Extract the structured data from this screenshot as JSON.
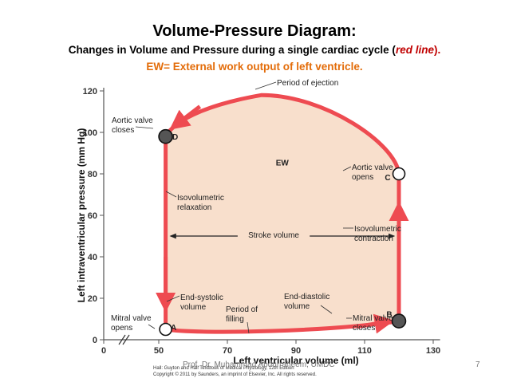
{
  "slide": {
    "title": "Volume-Pressure Diagram:",
    "subtitle_prefix": "Changes in Volume and Pressure during a single cardiac cycle (",
    "subtitle_red": "red line",
    "subtitle_suffix": ").",
    "ew_line": "EW= External work output of left ventricle.",
    "footer": "Prof. Dr. Muhammad Abdurraheem, UMDC",
    "page_number": "7"
  },
  "colors": {
    "loop_stroke": "#ee4b51",
    "loop_fill": "#f8dfcc",
    "valve_point_fill": "#555555",
    "subtitle_red": "#c00000",
    "ew_orange": "#e36c09"
  },
  "chart_data": {
    "type": "line",
    "title": "",
    "xlabel": "Left ventricular volume (ml)",
    "ylabel": "Left intraventricular pressure (mm Hg)",
    "xlim": [
      50,
      130
    ],
    "ylim": [
      0,
      120
    ],
    "x_ticks": [
      "0",
      "50",
      "70",
      "90",
      "110",
      "130"
    ],
    "y_ticks": [
      "0",
      "20",
      "40",
      "60",
      "80",
      "100",
      "120"
    ],
    "x_axis_break": true,
    "grid": false,
    "series": [
      {
        "values": [
          {
            "x": 52,
            "y": 5
          },
          {
            "x": 62,
            "y": 2.5
          },
          {
            "x": 80,
            "y": 2.5
          },
          {
            "x": 100,
            "y": 4
          },
          {
            "x": 120,
            "y": 9
          },
          {
            "x": 120,
            "y": 80
          },
          {
            "x": 119,
            "y": 95
          },
          {
            "x": 112,
            "y": 110
          },
          {
            "x": 98,
            "y": 118
          },
          {
            "x": 80,
            "y": 118
          },
          {
            "x": 66,
            "y": 114
          },
          {
            "x": 55,
            "y": 107
          },
          {
            "x": 52,
            "y": 98
          },
          {
            "x": 52,
            "y": 5
          }
        ]
      }
    ],
    "points": [
      {
        "label": "A",
        "x": 52,
        "y": 5,
        "filled": false
      },
      {
        "label": "B",
        "x": 120,
        "y": 9,
        "filled": true
      },
      {
        "label": "C",
        "x": 120,
        "y": 80,
        "filled": false
      },
      {
        "label": "D",
        "x": 52,
        "y": 98,
        "filled": true
      }
    ],
    "area_label": "EW",
    "annotations": [
      {
        "name": "period-of-ejection",
        "lines": [
          "Period of ejection"
        ]
      },
      {
        "name": "aortic-valve-closes",
        "lines": [
          "Aortic valve",
          "closes"
        ]
      },
      {
        "name": "aortic-valve-opens",
        "lines": [
          "Aortic valve",
          "opens"
        ]
      },
      {
        "name": "isovolumetric-relaxation",
        "lines": [
          "Isovolumetric",
          "relaxation"
        ]
      },
      {
        "name": "isovolumetric-contraction",
        "lines": [
          "Isovolumetric",
          "contraction"
        ]
      },
      {
        "name": "stroke-volume",
        "lines": [
          "Stroke volume"
        ]
      },
      {
        "name": "end-systolic-volume",
        "lines": [
          "End-systolic",
          "volume"
        ]
      },
      {
        "name": "period-of-filling",
        "lines": [
          "Period of",
          "filling"
        ]
      },
      {
        "name": "end-diastolic-volume",
        "lines": [
          "End-diastolic",
          "volume"
        ]
      },
      {
        "name": "mitral-valve-opens",
        "lines": [
          "Mitral valve",
          "opens"
        ]
      },
      {
        "name": "mitral-valve-closes",
        "lines": [
          "Mitral valve",
          "closes"
        ]
      }
    ],
    "credit": [
      "Hall: Guyton and Hall Textbook of Medical Physiology, 12th Edition",
      "Copyright © 2011 by Saunders, an imprint of Elsevier, Inc. All rights reserved."
    ]
  }
}
